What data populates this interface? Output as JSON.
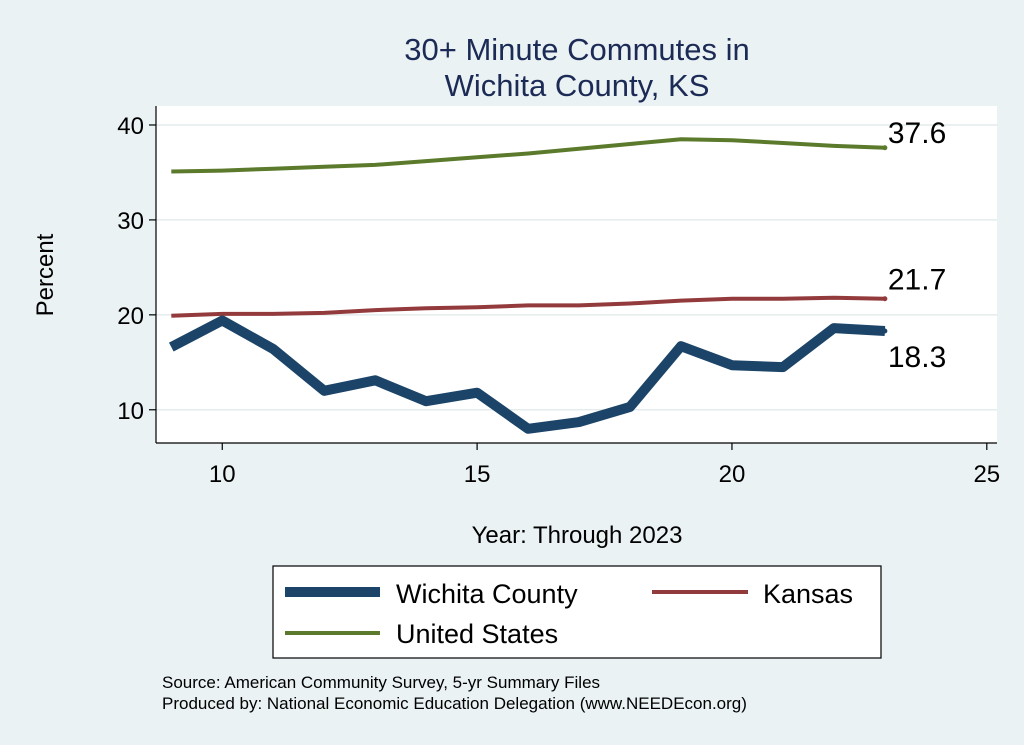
{
  "chart_data": {
    "type": "line",
    "title": [
      "30+ Minute Commutes in",
      "Wichita County, KS"
    ],
    "xlabel": "Year: Through 2023",
    "ylabel": "Percent",
    "xlim": [
      8.7,
      25.2
    ],
    "ylim": [
      6.5,
      42
    ],
    "xticks": [
      10,
      15,
      20,
      25
    ],
    "yticks": [
      10,
      20,
      30,
      40
    ],
    "grid": true,
    "x": [
      9,
      10,
      11,
      12,
      13,
      14,
      15,
      16,
      17,
      18,
      19,
      20,
      21,
      22,
      23
    ],
    "series": [
      {
        "name": "Wichita County",
        "color": "#1b4468",
        "width": 10,
        "values": [
          16.6,
          19.4,
          16.4,
          12.0,
          13.1,
          10.9,
          11.8,
          8.0,
          8.7,
          10.3,
          16.7,
          14.7,
          14.5,
          18.6,
          18.3
        ],
        "end_label": "18.3"
      },
      {
        "name": "Kansas",
        "color": "#933b3c",
        "width": 4,
        "values": [
          19.9,
          20.1,
          20.1,
          20.2,
          20.5,
          20.7,
          20.8,
          21.0,
          21.0,
          21.2,
          21.5,
          21.7,
          21.7,
          21.8,
          21.7
        ],
        "end_label": "21.7"
      },
      {
        "name": "United States",
        "color": "#5b7a2b",
        "width": 4,
        "values": [
          35.1,
          35.2,
          35.4,
          35.6,
          35.8,
          36.2,
          36.6,
          37.0,
          37.5,
          38.0,
          38.5,
          38.4,
          38.1,
          37.8,
          37.6
        ],
        "end_label": "37.6"
      }
    ],
    "legend": {
      "position": "bottom",
      "entries": [
        "Wichita County",
        "Kansas",
        "United States"
      ]
    },
    "source_lines": [
      "Source: American Community Survey, 5-yr Summary Files",
      "Produced by: National Economic Education Delegation (www.NEEDEcon.org)"
    ]
  }
}
